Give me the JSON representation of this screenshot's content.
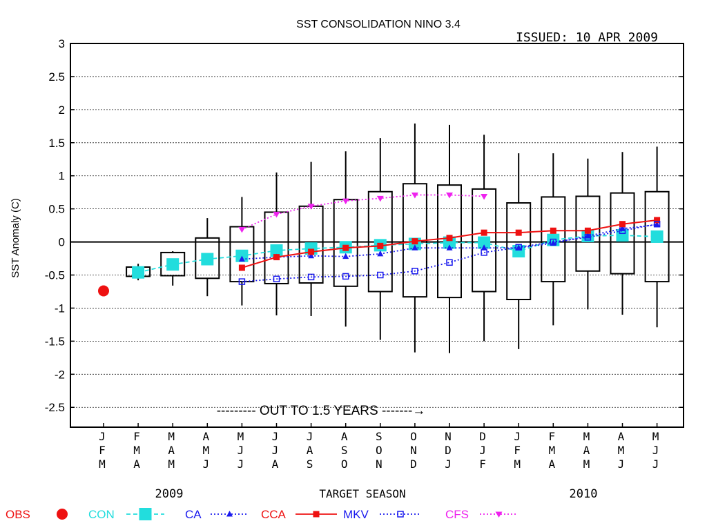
{
  "chart_data": {
    "type": "box",
    "title": "SST CONSOLIDATION NINO 3.4",
    "issued": "ISSUED: 10 APR 2009",
    "ylabel": "SST Anomaly (C)",
    "xlabel": "TARGET SEASON",
    "ylim": [
      -2.8,
      3
    ],
    "yticks": [
      3,
      2.5,
      2,
      1.5,
      1,
      0.5,
      0,
      -0.5,
      -1,
      -1.5,
      -2,
      -2.5
    ],
    "ytick_labels": [
      "3",
      "2.5",
      "2",
      "1.5",
      "1",
      "0.5",
      "0",
      "-0.5",
      "-1",
      "-1.5",
      "-2",
      "-2.5"
    ],
    "grid": true,
    "seasons": [
      [
        "J",
        "F",
        "M"
      ],
      [
        "F",
        "M",
        "A"
      ],
      [
        "M",
        "A",
        "M"
      ],
      [
        "A",
        "M",
        "J"
      ],
      [
        "M",
        "J",
        "J"
      ],
      [
        "J",
        "J",
        "A"
      ],
      [
        "J",
        "A",
        "S"
      ],
      [
        "A",
        "S",
        "O"
      ],
      [
        "S",
        "O",
        "N"
      ],
      [
        "O",
        "N",
        "D"
      ],
      [
        "N",
        "D",
        "J"
      ],
      [
        "D",
        "J",
        "F"
      ],
      [
        "J",
        "F",
        "M"
      ],
      [
        "F",
        "M",
        "A"
      ],
      [
        "M",
        "A",
        "M"
      ],
      [
        "A",
        "M",
        "J"
      ],
      [
        "M",
        "J",
        "J"
      ]
    ],
    "year_labels": [
      "2009",
      "2010"
    ],
    "annotation": "--------- OUT TO 1.5 YEARS -------→",
    "boxes": [
      {
        "season_index": 1,
        "wlo": -0.58,
        "q1": -0.52,
        "q3": -0.38,
        "whi": -0.33
      },
      {
        "season_index": 2,
        "wlo": -0.66,
        "q1": -0.51,
        "q3": -0.16,
        "whi": -0.14
      },
      {
        "season_index": 3,
        "wlo": -0.82,
        "q1": -0.55,
        "q3": 0.06,
        "whi": 0.36
      },
      {
        "season_index": 4,
        "wlo": -0.96,
        "q1": -0.6,
        "q3": 0.23,
        "whi": 0.68
      },
      {
        "season_index": 5,
        "wlo": -1.11,
        "q1": -0.63,
        "q3": 0.45,
        "whi": 1.05
      },
      {
        "season_index": 6,
        "wlo": -1.12,
        "q1": -0.62,
        "q3": 0.54,
        "whi": 1.21
      },
      {
        "season_index": 7,
        "wlo": -1.28,
        "q1": -0.67,
        "q3": 0.64,
        "whi": 1.37
      },
      {
        "season_index": 8,
        "wlo": -1.48,
        "q1": -0.75,
        "q3": 0.76,
        "whi": 1.57
      },
      {
        "season_index": 9,
        "wlo": -1.67,
        "q1": -0.83,
        "q3": 0.88,
        "whi": 1.79
      },
      {
        "season_index": 10,
        "wlo": -1.68,
        "q1": -0.84,
        "q3": 0.86,
        "whi": 1.77
      },
      {
        "season_index": 11,
        "wlo": -1.5,
        "q1": -0.75,
        "q3": 0.8,
        "whi": 1.62
      },
      {
        "season_index": 12,
        "wlo": -1.62,
        "q1": -0.87,
        "q3": 0.59,
        "whi": 1.34
      },
      {
        "season_index": 13,
        "wlo": -1.26,
        "q1": -0.6,
        "q3": 0.68,
        "whi": 1.34
      },
      {
        "season_index": 14,
        "wlo": -1.02,
        "q1": -0.44,
        "q3": 0.69,
        "whi": 1.26
      },
      {
        "season_index": 15,
        "wlo": -1.1,
        "q1": -0.48,
        "q3": 0.74,
        "whi": 1.36
      },
      {
        "season_index": 16,
        "wlo": -1.29,
        "q1": -0.6,
        "q3": 0.76,
        "whi": 1.44
      }
    ],
    "obs": {
      "name": "OBS",
      "color": "#ee1111",
      "points": [
        {
          "x": 0,
          "y": -0.74
        }
      ]
    },
    "series": [
      {
        "name": "CON",
        "color": "#22dddd",
        "marker": "big-square",
        "line": "dashed",
        "x": [
          1,
          2,
          3,
          4,
          5,
          6,
          7,
          8,
          9,
          10,
          11,
          12,
          13,
          14,
          15,
          16
        ],
        "values": [
          -0.46,
          -0.34,
          -0.26,
          -0.21,
          -0.13,
          -0.1,
          -0.08,
          -0.05,
          -0.03,
          -0.01,
          -0.01,
          -0.14,
          0.03,
          0.09,
          0.1,
          0.08
        ]
      },
      {
        "name": "CA",
        "color": "#1a1aee",
        "marker": "triangle",
        "line": "dotted",
        "x": [
          4,
          5,
          6,
          7,
          8,
          9,
          10,
          11,
          12,
          13,
          14,
          15,
          16
        ],
        "values": [
          -0.26,
          -0.23,
          -0.21,
          -0.22,
          -0.18,
          -0.09,
          -0.09,
          -0.09,
          -0.09,
          -0.02,
          0.09,
          0.2,
          0.26
        ]
      },
      {
        "name": "CCA",
        "color": "#ee1111",
        "marker": "square",
        "line": "solid",
        "x": [
          4,
          5,
          6,
          7,
          8,
          9,
          10,
          11,
          12,
          13,
          14,
          15,
          16
        ],
        "values": [
          -0.39,
          -0.23,
          -0.15,
          -0.09,
          -0.06,
          0.01,
          0.06,
          0.14,
          0.14,
          0.17,
          0.17,
          0.27,
          0.33
        ]
      },
      {
        "name": "MKV",
        "color": "#1a1aee",
        "marker": "open-square",
        "line": "dotted",
        "x": [
          4,
          5,
          6,
          7,
          8,
          9,
          10,
          11,
          12,
          13,
          14,
          15,
          16
        ],
        "values": [
          -0.6,
          -0.56,
          -0.53,
          -0.52,
          -0.5,
          -0.44,
          -0.31,
          -0.16,
          -0.08,
          0.0,
          0.07,
          0.17,
          0.27
        ]
      },
      {
        "name": "CFS",
        "color": "#ee22ee",
        "marker": "down-triangle",
        "line": "dotted",
        "x": [
          4,
          5,
          6,
          7,
          8,
          9,
          10,
          11
        ],
        "values": [
          0.19,
          0.42,
          0.54,
          0.62,
          0.66,
          0.71,
          0.71,
          0.69
        ]
      }
    ]
  }
}
